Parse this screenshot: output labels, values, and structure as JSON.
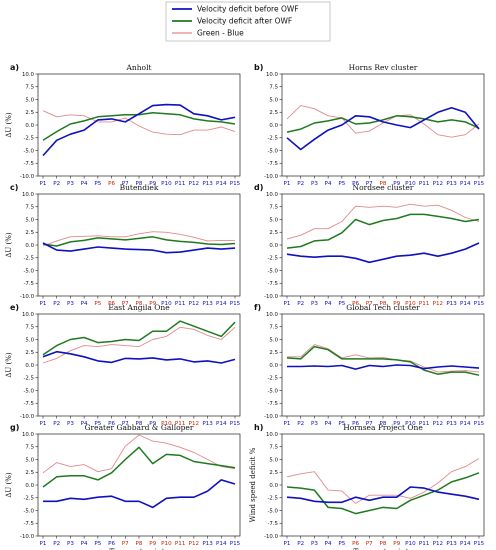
{
  "legend": {
    "entries": [
      {
        "label": "Velocity deficit before OWF",
        "color": "#1010c0"
      },
      {
        "label": "Velocity deficit after OWF",
        "color": "#1f7a1f"
      },
      {
        "label": "Green - Blue",
        "color": "#e08a8a"
      }
    ]
  },
  "colors": {
    "blue": "#1010c0",
    "green": "#1f7a1f",
    "diff": "#e08a8a",
    "tick_blue": "#1010c0",
    "tick_red": "#cc2200"
  },
  "chart_data": [
    {
      "type": "line",
      "label": "a)",
      "title": "Anholt",
      "ylabel": "ΔU (%)",
      "xlabel": "",
      "x": [
        "P1",
        "P2",
        "P3",
        "P4",
        "P5",
        "P6",
        "P7",
        "P8",
        "P9",
        "P10",
        "P11",
        "P12",
        "P13",
        "P14",
        "P15"
      ],
      "tick_colors": [
        "blue",
        "blue",
        "blue",
        "blue",
        "blue",
        "red",
        "blue",
        "blue",
        "blue",
        "blue",
        "blue",
        "blue",
        "blue",
        "blue",
        "blue"
      ],
      "ylim": [
        -10,
        10
      ],
      "yticks": [
        -10,
        -7.5,
        -5,
        -2.5,
        0,
        2.5,
        5,
        7.5,
        10
      ],
      "series": [
        {
          "name": "Velocity deficit before OWF",
          "values": [
            -6.0,
            -3.0,
            -1.8,
            -1.0,
            1.0,
            1.2,
            0.6,
            2.2,
            3.8,
            4.0,
            3.9,
            2.2,
            1.8,
            1.0,
            1.5
          ]
        },
        {
          "name": "Velocity deficit after OWF",
          "values": [
            -3.0,
            -1.3,
            0.2,
            0.8,
            1.6,
            1.8,
            2.0,
            2.0,
            2.4,
            2.2,
            2.0,
            1.2,
            0.8,
            0.6,
            0.2
          ]
        },
        {
          "name": "Green - Blue",
          "values": [
            2.8,
            1.6,
            2.0,
            1.8,
            0.6,
            0.6,
            1.4,
            -0.2,
            -1.4,
            -1.8,
            -1.9,
            -1.0,
            -1.0,
            -0.4,
            -1.3
          ]
        }
      ]
    },
    {
      "type": "line",
      "label": "b)",
      "title": "Horns Rev cluster",
      "ylabel": "",
      "xlabel": "",
      "x": [
        "P1",
        "P2",
        "P3",
        "P4",
        "P5",
        "P6",
        "P7",
        "P8",
        "P9",
        "P10",
        "P11",
        "P12",
        "P13",
        "P14",
        "P15"
      ],
      "tick_colors": [
        "blue",
        "blue",
        "blue",
        "blue",
        "blue",
        "blue",
        "blue",
        "red",
        "blue",
        "blue",
        "blue",
        "blue",
        "blue",
        "blue",
        "blue"
      ],
      "ylim": [
        -10,
        10
      ],
      "yticks": [
        -10,
        -7.5,
        -5,
        -2.5,
        0,
        2.5,
        5,
        7.5,
        10
      ],
      "series": [
        {
          "name": "Velocity deficit before OWF",
          "values": [
            -2.5,
            -4.8,
            -2.8,
            -1.0,
            0.0,
            1.8,
            1.6,
            0.6,
            0.0,
            -0.5,
            1.0,
            2.5,
            3.4,
            2.5,
            -0.8
          ]
        },
        {
          "name": "Velocity deficit after OWF",
          "values": [
            -1.4,
            -0.8,
            0.4,
            0.8,
            1.4,
            0.2,
            0.4,
            1.0,
            1.8,
            1.6,
            1.2,
            0.6,
            1.0,
            0.6,
            -0.6
          ]
        },
        {
          "name": "Green - Blue",
          "values": [
            1.2,
            3.8,
            3.2,
            1.8,
            1.4,
            -1.6,
            -1.2,
            0.4,
            1.8,
            2.0,
            0.2,
            -1.9,
            -2.4,
            -1.9,
            0.2
          ]
        }
      ]
    },
    {
      "type": "line",
      "label": "c)",
      "title": "Butendiek",
      "ylabel": "ΔU (%)",
      "xlabel": "",
      "x": [
        "P1",
        "P2",
        "P3",
        "P4",
        "P5",
        "P6",
        "P7",
        "P8",
        "P9",
        "P10",
        "P11",
        "P12",
        "P13",
        "P14",
        "P15"
      ],
      "tick_colors": [
        "blue",
        "blue",
        "blue",
        "blue",
        "red",
        "red",
        "red",
        "red",
        "red",
        "blue",
        "blue",
        "blue",
        "blue",
        "blue",
        "blue"
      ],
      "ylim": [
        -10,
        10
      ],
      "yticks": [
        -10,
        -7.5,
        -5,
        -2.5,
        0,
        2.5,
        5,
        7.5,
        10
      ],
      "series": [
        {
          "name": "Velocity deficit before OWF",
          "values": [
            0.4,
            -1.0,
            -1.2,
            -0.8,
            -0.4,
            -0.6,
            -0.8,
            -0.9,
            -1.0,
            -1.5,
            -1.4,
            -1.0,
            -0.6,
            -0.8,
            -0.6
          ]
        },
        {
          "name": "Velocity deficit after OWF",
          "values": [
            0.2,
            -0.2,
            0.6,
            0.9,
            1.4,
            1.2,
            1.0,
            1.3,
            1.6,
            1.0,
            0.7,
            0.5,
            0.2,
            0.1,
            0.3
          ]
        },
        {
          "name": "Green - Blue",
          "values": [
            -0.2,
            0.8,
            1.6,
            1.7,
            1.8,
            1.6,
            1.6,
            2.2,
            2.6,
            2.5,
            2.1,
            1.5,
            0.8,
            0.9,
            0.9
          ]
        }
      ]
    },
    {
      "type": "line",
      "label": "d)",
      "title": "Nordsee cluster",
      "ylabel": "",
      "xlabel": "",
      "x": [
        "P1",
        "P2",
        "P3",
        "P4",
        "P5",
        "P6",
        "P7",
        "P8",
        "P9",
        "P10",
        "P11",
        "P12",
        "P13",
        "P14",
        "P15"
      ],
      "tick_colors": [
        "blue",
        "blue",
        "blue",
        "blue",
        "blue",
        "red",
        "red",
        "red",
        "red",
        "red",
        "red",
        "red",
        "blue",
        "blue",
        "blue"
      ],
      "ylim": [
        -10,
        10
      ],
      "yticks": [
        -10,
        -7.5,
        -5,
        -2.5,
        0,
        2.5,
        5,
        7.5,
        10
      ],
      "series": [
        {
          "name": "Velocity deficit before OWF",
          "values": [
            -1.8,
            -2.2,
            -2.4,
            -2.2,
            -2.2,
            -2.6,
            -3.4,
            -2.8,
            -2.2,
            -2.0,
            -1.6,
            -2.2,
            -1.6,
            -0.8,
            0.4
          ]
        },
        {
          "name": "Velocity deficit after OWF",
          "values": [
            -0.6,
            -0.3,
            0.8,
            1.0,
            2.4,
            5.0,
            4.0,
            4.8,
            5.2,
            6.0,
            6.0,
            5.6,
            5.2,
            4.6,
            5.0
          ]
        },
        {
          "name": "Green - Blue",
          "values": [
            1.2,
            1.9,
            3.2,
            3.2,
            4.6,
            7.6,
            7.4,
            7.6,
            7.4,
            8.0,
            7.6,
            7.8,
            6.8,
            5.4,
            4.6
          ]
        }
      ]
    },
    {
      "type": "line",
      "label": "e)",
      "title": "East Angila One",
      "ylabel": "ΔU (%)",
      "xlabel": "",
      "x": [
        "P1",
        "P2",
        "P3",
        "P4",
        "P5",
        "P6",
        "P7",
        "P8",
        "P9",
        "P10",
        "P11",
        "P12",
        "P13",
        "P14",
        "P15"
      ],
      "tick_colors": [
        "blue",
        "blue",
        "blue",
        "blue",
        "blue",
        "blue",
        "blue",
        "blue",
        "blue",
        "red",
        "red",
        "red",
        "blue",
        "blue",
        "blue"
      ],
      "ylim": [
        -10,
        10
      ],
      "yticks": [
        -10,
        -7.5,
        -5,
        -2.5,
        0,
        2.5,
        5,
        7.5,
        10
      ],
      "series": [
        {
          "name": "Velocity deficit before OWF",
          "values": [
            1.6,
            2.6,
            2.2,
            1.6,
            0.8,
            0.5,
            1.3,
            1.2,
            1.4,
            1.0,
            1.2,
            0.6,
            0.8,
            0.4,
            1.1
          ]
        },
        {
          "name": "Velocity deficit after OWF",
          "values": [
            2.0,
            3.8,
            5.0,
            5.4,
            4.4,
            4.6,
            5.0,
            4.8,
            6.6,
            6.6,
            8.6,
            7.6,
            6.6,
            5.6,
            8.4
          ]
        },
        {
          "name": "Green - Blue",
          "values": [
            0.4,
            1.3,
            2.8,
            3.8,
            3.6,
            4.0,
            3.8,
            3.6,
            5.0,
            5.6,
            7.4,
            7.0,
            5.8,
            5.0,
            7.4
          ]
        }
      ]
    },
    {
      "type": "line",
      "label": "f)",
      "title": "Global Tech cluster",
      "ylabel": "",
      "xlabel": "",
      "x": [
        "P1",
        "P2",
        "P3",
        "P4",
        "P5",
        "P6",
        "P7",
        "P8",
        "P9",
        "P10",
        "P11",
        "P12",
        "P13",
        "P14",
        "P15"
      ],
      "tick_colors": [
        "blue",
        "blue",
        "blue",
        "blue",
        "blue",
        "blue",
        "blue",
        "blue",
        "blue",
        "blue",
        "blue",
        "blue",
        "blue",
        "blue",
        "blue"
      ],
      "ylim": [
        -10,
        10
      ],
      "yticks": [
        -10,
        -7.5,
        -5,
        -2.5,
        0,
        2.5,
        5,
        7.5,
        10
      ],
      "series": [
        {
          "name": "Velocity deficit before OWF",
          "values": [
            -0.3,
            -0.3,
            -0.2,
            -0.3,
            -0.1,
            -0.8,
            -0.1,
            -0.3,
            0.0,
            -0.1,
            -0.7,
            -0.4,
            -0.2,
            -0.4,
            -0.6
          ]
        },
        {
          "name": "Velocity deficit after OWF",
          "values": [
            1.4,
            1.2,
            3.6,
            3.0,
            1.2,
            1.2,
            1.2,
            1.2,
            1.0,
            0.6,
            -1.0,
            -1.8,
            -1.4,
            -1.4,
            -2.0
          ]
        },
        {
          "name": "Green - Blue",
          "values": [
            1.6,
            1.6,
            4.0,
            3.2,
            1.4,
            2.0,
            1.4,
            1.5,
            1.0,
            0.8,
            -0.4,
            -1.4,
            -1.2,
            -1.1,
            -1.4
          ]
        }
      ]
    },
    {
      "type": "line",
      "label": "g)",
      "title": "Greater Gabbard & Galloper",
      "ylabel": "ΔU (%)",
      "xlabel": "Transect points",
      "x": [
        "P1",
        "P2",
        "P3",
        "P4",
        "P5",
        "P6",
        "P7",
        "P8",
        "P9",
        "P10",
        "P11",
        "P12",
        "P13",
        "P14",
        "P15"
      ],
      "tick_colors": [
        "blue",
        "blue",
        "blue",
        "blue",
        "blue",
        "blue",
        "red",
        "red",
        "red",
        "red",
        "red",
        "red",
        "blue",
        "blue",
        "blue"
      ],
      "ylim": [
        -10,
        10
      ],
      "yticks": [
        -10,
        -7.5,
        -5,
        -2.5,
        0,
        2.5,
        5,
        7.5,
        10
      ],
      "series": [
        {
          "name": "Velocity deficit before OWF",
          "values": [
            -3.2,
            -3.2,
            -2.6,
            -2.8,
            -2.4,
            -2.2,
            -3.2,
            -3.2,
            -4.4,
            -2.6,
            -2.4,
            -2.4,
            -1.2,
            1.0,
            0.2
          ]
        },
        {
          "name": "Velocity deficit after OWF",
          "values": [
            -0.4,
            1.6,
            1.8,
            1.8,
            1.0,
            2.4,
            5.0,
            7.4,
            4.2,
            6.0,
            5.8,
            4.6,
            4.2,
            3.8,
            3.4
          ]
        },
        {
          "name": "Green - Blue",
          "values": [
            2.4,
            4.4,
            3.6,
            4.0,
            2.6,
            3.2,
            7.6,
            9.8,
            8.6,
            8.2,
            7.4,
            6.4,
            5.0,
            3.6,
            3.2
          ]
        }
      ]
    },
    {
      "type": "line",
      "label": "h)",
      "title": "Hornsea Project One",
      "ylabel": "Wind speed deficit %",
      "xlabel": "Transect points",
      "x": [
        "P1",
        "P2",
        "P3",
        "P4",
        "P5",
        "P6",
        "P7",
        "P8",
        "P9",
        "P10",
        "P11",
        "P12",
        "P13",
        "P14",
        "P15"
      ],
      "tick_colors": [
        "blue",
        "blue",
        "blue",
        "blue",
        "blue",
        "red",
        "red",
        "red",
        "red",
        "blue",
        "blue",
        "blue",
        "blue",
        "blue",
        "blue"
      ],
      "ylim": [
        -10,
        10
      ],
      "yticks": [
        -10,
        -7.5,
        -5,
        -2.5,
        0,
        2.5,
        5,
        7.5,
        10
      ],
      "series": [
        {
          "name": "Velocity deficit before OWF",
          "values": [
            -2.4,
            -2.6,
            -3.2,
            -3.4,
            -3.4,
            -2.4,
            -3.0,
            -2.4,
            -2.4,
            -0.4,
            -0.6,
            -1.4,
            -1.8,
            -2.2,
            -2.8
          ]
        },
        {
          "name": "Velocity deficit after OWF",
          "values": [
            -0.4,
            -0.6,
            -1.0,
            -4.4,
            -4.6,
            -5.6,
            -5.0,
            -4.4,
            -4.6,
            -3.0,
            -2.0,
            -1.0,
            0.6,
            1.4,
            2.4
          ]
        },
        {
          "name": "Green - Blue",
          "values": [
            1.6,
            2.2,
            2.6,
            -1.0,
            -1.2,
            -3.6,
            -2.0,
            -2.0,
            -2.0,
            -2.6,
            -1.4,
            0.4,
            2.6,
            3.6,
            5.2
          ]
        }
      ]
    }
  ]
}
